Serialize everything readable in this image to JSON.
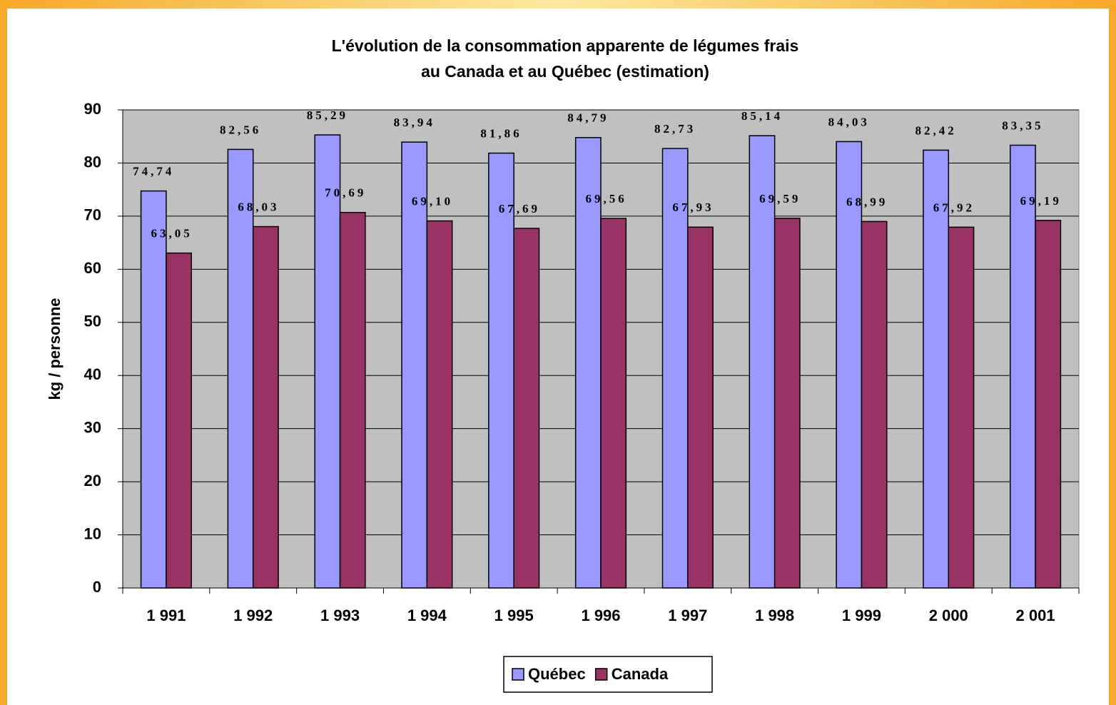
{
  "chart_data": {
    "type": "bar",
    "title": [
      "L'évolution de la consommation apparente de légumes frais",
      "au Canada et au Québec (estimation)"
    ],
    "ylabel": "kg / personne",
    "categories": [
      "1 991",
      "1 992",
      "1 993",
      "1 994",
      "1 995",
      "1 996",
      "1 997",
      "1 998",
      "1 999",
      "2 000",
      "2 001"
    ],
    "series": [
      {
        "name": "Québec",
        "color": "#9999ff",
        "values": [
          74.74,
          82.56,
          85.29,
          83.94,
          81.86,
          84.79,
          82.73,
          85.14,
          84.03,
          82.42,
          83.35
        ],
        "value_labels": [
          "74,74",
          "82,56",
          "85,29",
          "83,94",
          "81,86",
          "84,79",
          "82,73",
          "85,14",
          "84,03",
          "82,42",
          "83,35"
        ]
      },
      {
        "name": "Canada",
        "color": "#993366",
        "values": [
          63.05,
          68.03,
          70.69,
          69.1,
          67.69,
          69.56,
          67.93,
          69.59,
          68.99,
          67.92,
          69.19
        ],
        "value_labels": [
          "63,05",
          "68,03",
          "70,69",
          "69,10",
          "67,69",
          "69,56",
          "67,93",
          "69,59",
          "68,99",
          "67,92",
          "69,19"
        ]
      }
    ],
    "ylim": [
      0,
      90
    ],
    "yticks": [
      0,
      10,
      20,
      30,
      40,
      50,
      60,
      70,
      80,
      90
    ],
    "grid": true,
    "legend": "bottom",
    "plot_background": "#c0c0c0"
  }
}
